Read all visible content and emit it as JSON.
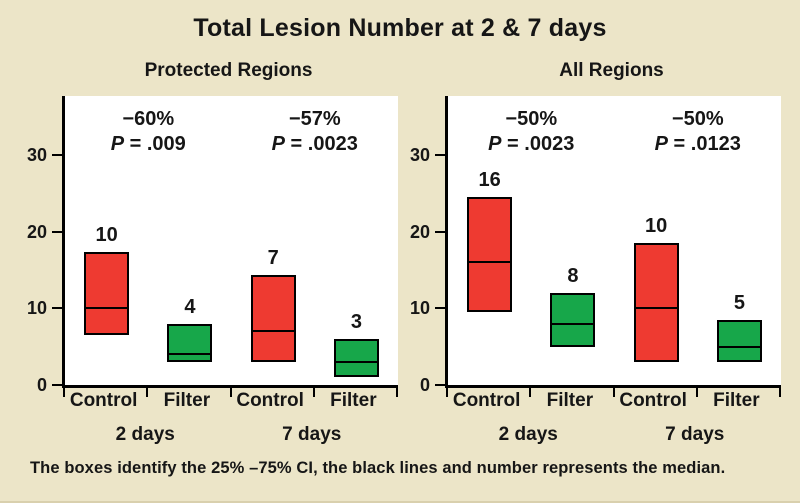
{
  "chart_data": {
    "type": "boxplot",
    "title": "Total Lesion Number at 2 & 7 days",
    "ylabel": "",
    "yticks": [
      0,
      10,
      20,
      30
    ],
    "ylim": [
      0,
      37.7
    ],
    "grid": false,
    "box_border_color": "#000000",
    "colors": {
      "control": "#ee3a31",
      "filter": "#17a74a"
    },
    "panels": [
      {
        "subtitle": "Protected Regions",
        "day_groups": [
          "2 days",
          "7 days"
        ],
        "annotations": [
          {
            "percent_change": "−60%",
            "p_label": "P = .009"
          },
          {
            "percent_change": "−57%",
            "p_label": "P = .0023"
          }
        ],
        "boxes": [
          {
            "category": "Control",
            "day": "2 days",
            "q1": 6.5,
            "median": 10,
            "q3": 17.3,
            "median_label": "10",
            "color": "#ee3a31"
          },
          {
            "category": "Filter",
            "day": "2 days",
            "q1": 3,
            "median": 4,
            "q3": 8,
            "median_label": "4",
            "color": "#17a74a"
          },
          {
            "category": "Control",
            "day": "7 days",
            "q1": 3,
            "median": 7,
            "q3": 14.3,
            "median_label": "7",
            "color": "#ee3a31"
          },
          {
            "category": "Filter",
            "day": "7 days",
            "q1": 1,
            "median": 3,
            "q3": 6,
            "median_label": "3",
            "color": "#17a74a"
          }
        ]
      },
      {
        "subtitle": "All Regions",
        "day_groups": [
          "2 days",
          "7 days"
        ],
        "annotations": [
          {
            "percent_change": "−50%",
            "p_label": "P = .0023"
          },
          {
            "percent_change": "−50%",
            "p_label": "P = .0123"
          }
        ],
        "boxes": [
          {
            "category": "Control",
            "day": "2 days",
            "q1": 9.5,
            "median": 16,
            "q3": 24.5,
            "median_label": "16",
            "color": "#ee3a31"
          },
          {
            "category": "Filter",
            "day": "2 days",
            "q1": 5,
            "median": 8,
            "q3": 12,
            "median_label": "8",
            "color": "#17a74a"
          },
          {
            "category": "Control",
            "day": "7 days",
            "q1": 3,
            "median": 10,
            "q3": 18.5,
            "median_label": "10",
            "color": "#ee3a31"
          },
          {
            "category": "Filter",
            "day": "7 days",
            "q1": 3,
            "median": 5,
            "q3": 8.5,
            "median_label": "5",
            "color": "#17a74a"
          }
        ]
      }
    ],
    "caption": "The boxes identify the 25% –75% CI, the black lines and number represents the median."
  }
}
